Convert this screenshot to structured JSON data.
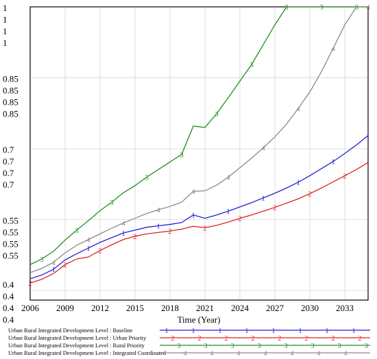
{
  "chart_data": {
    "type": "line",
    "title": "",
    "xlabel": "Time (Year)",
    "ylabel": "",
    "x_range": [
      2006,
      2035
    ],
    "y_range": [
      0.38,
      1.0
    ],
    "x_ticks": [
      "2006",
      "2009",
      "2012",
      "2015",
      "2018",
      "2021",
      "2024",
      "2027",
      "2030",
      "2033"
    ],
    "y_tick_groups": [
      {
        "value": 1.0,
        "labels": [
          "1",
          "1",
          "1",
          "1"
        ]
      },
      {
        "value": 0.85,
        "labels": [
          "0.85",
          "0.85",
          "0.85",
          "0.85"
        ]
      },
      {
        "value": 0.7,
        "labels": [
          "0.7",
          "0.7",
          "0.7",
          "0.7"
        ]
      },
      {
        "value": 0.55,
        "labels": [
          "0.55",
          "0.55",
          "0.55",
          "0.55"
        ]
      },
      {
        "value": 0.4,
        "labels": [
          "0.4",
          "0.4",
          "0.4",
          "0.4"
        ]
      }
    ],
    "grid": true,
    "legend_position": "bottom",
    "series": [
      {
        "name": "Urban Rural Integrated Development Level : Baseline",
        "marker": "1",
        "color": "#1f1fd6",
        "x": [
          2006,
          2007,
          2008,
          2009,
          2010,
          2011,
          2012,
          2013,
          2014,
          2015,
          2016,
          2017,
          2018,
          2019,
          2020,
          2021,
          2022,
          2023,
          2024,
          2025,
          2026,
          2027,
          2028,
          2029,
          2030,
          2031,
          2032,
          2033,
          2034,
          2035
        ],
        "y": [
          0.425,
          0.433,
          0.445,
          0.465,
          0.478,
          0.49,
          0.502,
          0.512,
          0.522,
          0.528,
          0.534,
          0.537,
          0.54,
          0.544,
          0.56,
          0.553,
          0.56,
          0.568,
          0.577,
          0.586,
          0.596,
          0.606,
          0.617,
          0.629,
          0.643,
          0.658,
          0.673,
          0.69,
          0.708,
          0.728
        ]
      },
      {
        "name": "Urban Rural Integrated Development Level : Urban Priority",
        "marker": "2",
        "color": "#e02020",
        "x": [
          2006,
          2007,
          2008,
          2009,
          2010,
          2011,
          2012,
          2013,
          2014,
          2015,
          2016,
          2017,
          2018,
          2019,
          2020,
          2021,
          2022,
          2023,
          2024,
          2025,
          2026,
          2027,
          2028,
          2029,
          2030,
          2031,
          2032,
          2033,
          2034,
          2035
        ],
        "y": [
          0.416,
          0.424,
          0.436,
          0.455,
          0.467,
          0.471,
          0.485,
          0.497,
          0.508,
          0.515,
          0.52,
          0.523,
          0.526,
          0.53,
          0.536,
          0.533,
          0.538,
          0.545,
          0.553,
          0.56,
          0.568,
          0.576,
          0.585,
          0.594,
          0.605,
          0.617,
          0.63,
          0.643,
          0.656,
          0.671
        ]
      },
      {
        "name": "Urban Rural Integrated Development Level : Rural Priority",
        "marker": "3",
        "color": "#1f8f1f",
        "x": [
          2006,
          2007,
          2008,
          2009,
          2010,
          2011,
          2012,
          2013,
          2014,
          2015,
          2016,
          2017,
          2018,
          2019,
          2020,
          2021,
          2022,
          2023,
          2024,
          2025,
          2026,
          2027,
          2028,
          2029,
          2030,
          2031,
          2032,
          2033,
          2034,
          2035
        ],
        "y": [
          0.455,
          0.467,
          0.483,
          0.507,
          0.528,
          0.548,
          0.569,
          0.587,
          0.607,
          0.622,
          0.64,
          0.656,
          0.672,
          0.688,
          0.748,
          0.745,
          0.774,
          0.808,
          0.843,
          0.878,
          0.92,
          0.962,
          1.0,
          1.0,
          1.0,
          1.0,
          1.0,
          1.0,
          1.0,
          1.0
        ]
      },
      {
        "name": "Urban Rural Integrated Development Level : Integrated Coordinated",
        "marker": "4",
        "color": "#8a8a8a",
        "x": [
          2006,
          2007,
          2008,
          2009,
          2010,
          2011,
          2012,
          2013,
          2014,
          2015,
          2016,
          2017,
          2018,
          2019,
          2020,
          2021,
          2022,
          2023,
          2024,
          2025,
          2026,
          2027,
          2028,
          2029,
          2030,
          2031,
          2032,
          2033,
          2034,
          2035
        ],
        "y": [
          0.438,
          0.447,
          0.46,
          0.48,
          0.496,
          0.508,
          0.52,
          0.532,
          0.543,
          0.553,
          0.563,
          0.571,
          0.578,
          0.587,
          0.61,
          0.611,
          0.623,
          0.64,
          0.66,
          0.68,
          0.702,
          0.725,
          0.752,
          0.785,
          0.82,
          0.863,
          0.912,
          0.962,
          1.0,
          1.0
        ]
      }
    ]
  }
}
